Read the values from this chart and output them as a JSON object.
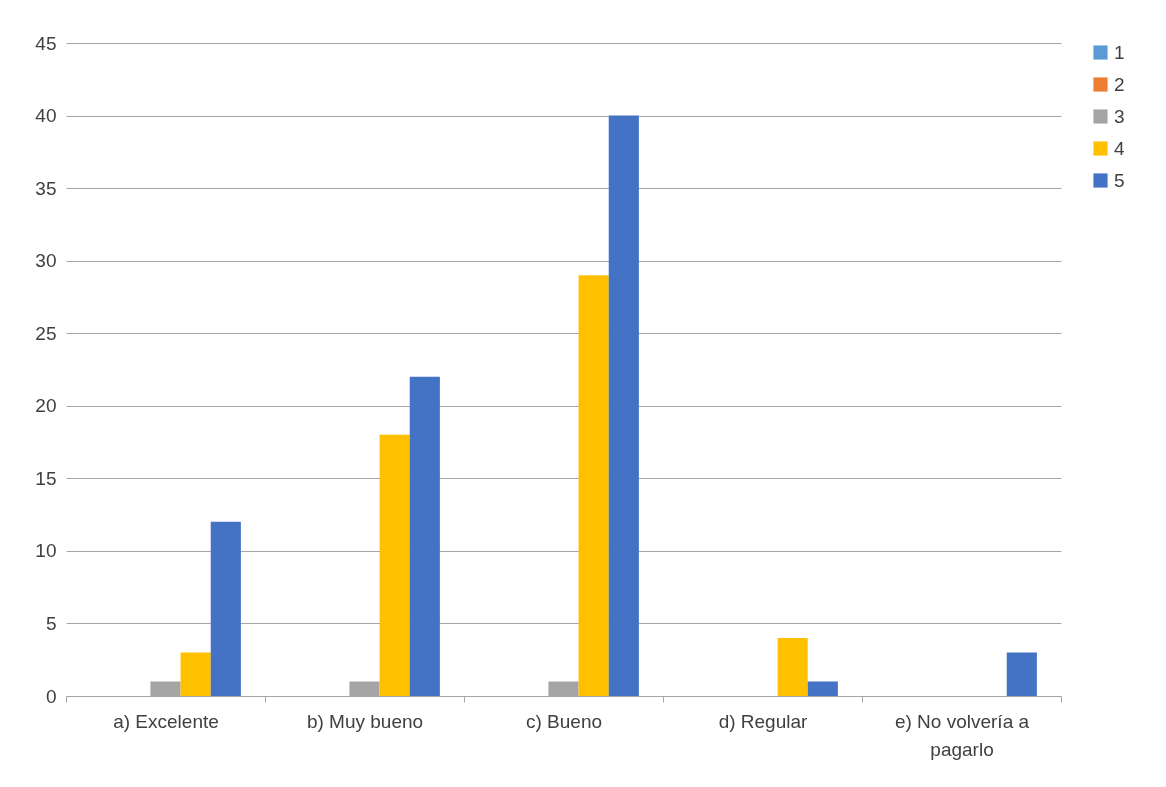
{
  "chart_data": {
    "type": "bar",
    "categories": [
      "a) Excelente",
      "b) Muy bueno",
      "c) Bueno",
      "d) Regular",
      "e) No volvería a pagarlo"
    ],
    "series": [
      {
        "name": "1",
        "color": "#5b9bd5",
        "values": [
          0,
          0,
          0,
          0,
          0
        ]
      },
      {
        "name": "2",
        "color": "#ed7d31",
        "values": [
          0,
          0,
          0,
          0,
          0
        ]
      },
      {
        "name": "3",
        "color": "#a5a5a5",
        "values": [
          1,
          1,
          1,
          0,
          0
        ]
      },
      {
        "name": "4",
        "color": "#ffc000",
        "values": [
          3,
          18,
          29,
          4,
          0
        ]
      },
      {
        "name": "5",
        "color": "#4472c4",
        "values": [
          12,
          22,
          40,
          1,
          3
        ]
      }
    ],
    "ylim": [
      0,
      45
    ],
    "yticks": [
      0,
      5,
      10,
      15,
      20,
      25,
      30,
      35,
      40,
      45
    ],
    "grid": "y",
    "legend": "right"
  }
}
